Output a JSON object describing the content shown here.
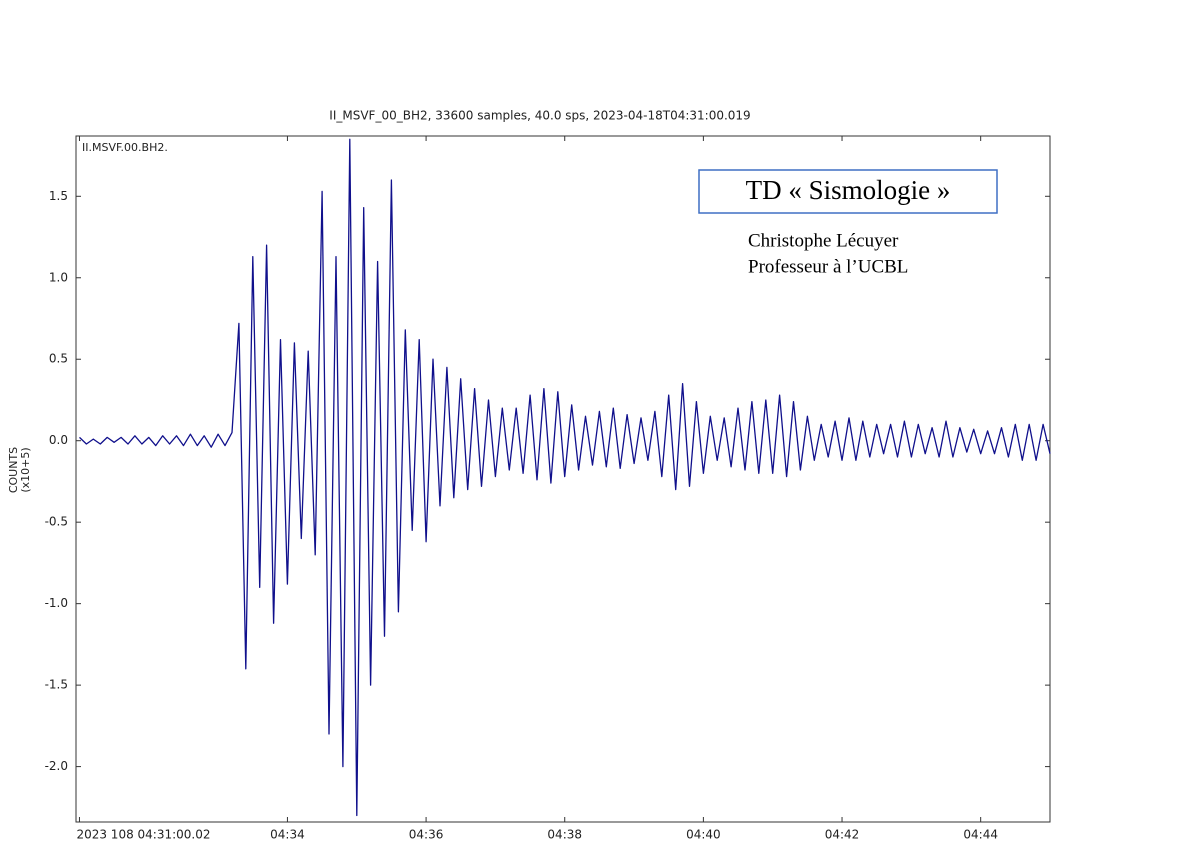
{
  "chart_data": {
    "type": "line",
    "title": "II_MSVF_00_BH2, 33600 samples, 40.0 sps, 2023-04-18T04:31:00.019",
    "trace_label": "II.MSVF.00.BH2.",
    "ylabel": [
      "COUNTS",
      "(x10+5)"
    ],
    "annotations": {
      "box_title": "TD « Sismologie »",
      "author": "Christophe Lécuyer",
      "role": "Professeur à l’UCBL"
    },
    "x": [
      0,
      0.1,
      0.2,
      0.3,
      0.4,
      0.5,
      0.6,
      0.7,
      0.8,
      0.9,
      1,
      1.1,
      1.2,
      1.3,
      1.4,
      1.5,
      1.6,
      1.7,
      1.8,
      1.9,
      2,
      2.1,
      2.2,
      2.3,
      2.4,
      2.5,
      2.6,
      2.7,
      2.8,
      2.9,
      3,
      3.1,
      3.2,
      3.3,
      3.4,
      3.5,
      3.6,
      3.7,
      3.8,
      3.9,
      4,
      4.1,
      4.2,
      4.3,
      4.4,
      4.5,
      4.6,
      4.7,
      4.8,
      4.9,
      5,
      5.1,
      5.2,
      5.3,
      5.4,
      5.5,
      5.6,
      5.7,
      5.8,
      5.9,
      6,
      6.1,
      6.2,
      6.3,
      6.4,
      6.5,
      6.6,
      6.7,
      6.8,
      6.9,
      7,
      7.1,
      7.2,
      7.3,
      7.4,
      7.5,
      7.6,
      7.7,
      7.8,
      7.9,
      8,
      8.1,
      8.2,
      8.3,
      8.4,
      8.5,
      8.6,
      8.7,
      8.8,
      8.9,
      9,
      9.1,
      9.2,
      9.3,
      9.4,
      9.5,
      9.6,
      9.7,
      9.8,
      9.9,
      10,
      10.1,
      10.2,
      10.3,
      10.4,
      10.5,
      10.6,
      10.7,
      10.8,
      10.9,
      11,
      11.1,
      11.2,
      11.3,
      11.4,
      11.5,
      11.6,
      11.7,
      11.8,
      11.9,
      12,
      12.1,
      12.2,
      12.3,
      12.4,
      12.5,
      12.6,
      12.7,
      12.8,
      12.9,
      13,
      13.1,
      13.2,
      13.3,
      13.4,
      13.5,
      13.6,
      13.7,
      13.8,
      13.9,
      14
    ],
    "series": [
      {
        "color": "#10108c",
        "values": [
          0.02,
          -0.02,
          0.01,
          -0.02,
          0.02,
          -0.01,
          0.02,
          -0.02,
          0.03,
          -0.02,
          0.02,
          -0.03,
          0.03,
          -0.02,
          0.03,
          -0.03,
          0.04,
          -0.03,
          0.03,
          -0.04,
          0.04,
          -0.03,
          0.05,
          0.72,
          -1.4,
          1.13,
          -0.9,
          1.2,
          -1.12,
          0.62,
          -0.88,
          0.6,
          -0.6,
          0.55,
          -0.7,
          1.53,
          -1.8,
          1.13,
          -2.0,
          1.85,
          -2.3,
          1.43,
          -1.5,
          1.1,
          -1.2,
          1.6,
          -1.05,
          0.68,
          -0.55,
          0.62,
          -0.62,
          0.5,
          -0.4,
          0.45,
          -0.35,
          0.38,
          -0.3,
          0.32,
          -0.28,
          0.25,
          -0.22,
          0.2,
          -0.18,
          0.2,
          -0.2,
          0.28,
          -0.24,
          0.32,
          -0.26,
          0.3,
          -0.22,
          0.22,
          -0.18,
          0.15,
          -0.15,
          0.18,
          -0.16,
          0.2,
          -0.17,
          0.16,
          -0.14,
          0.14,
          -0.12,
          0.18,
          -0.22,
          0.28,
          -0.3,
          0.35,
          -0.28,
          0.24,
          -0.2,
          0.15,
          -0.12,
          0.14,
          -0.16,
          0.2,
          -0.18,
          0.24,
          -0.2,
          0.25,
          -0.2,
          0.28,
          -0.22,
          0.24,
          -0.18,
          0.15,
          -0.12,
          0.1,
          -0.1,
          0.12,
          -0.12,
          0.14,
          -0.12,
          0.12,
          -0.1,
          0.1,
          -0.08,
          0.1,
          -0.1,
          0.12,
          -0.1,
          0.1,
          -0.08,
          0.08,
          -0.1,
          0.12,
          -0.1,
          0.08,
          -0.07,
          0.07,
          -0.08,
          0.06,
          -0.08,
          0.08,
          -0.1,
          0.1,
          -0.12,
          0.1,
          -0.12,
          0.1,
          -0.08
        ]
      }
    ],
    "xlim": [
      -0.05,
      14
    ],
    "xticks": [
      {
        "value": 0,
        "label": "2023 108 04:31:00.02"
      },
      {
        "value": 3,
        "label": "04:34"
      },
      {
        "value": 5,
        "label": "04:36"
      },
      {
        "value": 7,
        "label": "04:38"
      },
      {
        "value": 9,
        "label": "04:40"
      },
      {
        "value": 11,
        "label": "04:42"
      },
      {
        "value": 13,
        "label": "04:44"
      }
    ],
    "ylim": [
      -2.34,
      1.87
    ],
    "yticks": [
      {
        "value": -2,
        "label": "-2.0"
      },
      -1.5,
      {
        "value": -1,
        "label": "-1.0"
      },
      -0.5,
      {
        "value": 0,
        "label": "0.0"
      },
      0.5,
      {
        "value": 1,
        "label": "1.0"
      },
      1.5
    ]
  }
}
